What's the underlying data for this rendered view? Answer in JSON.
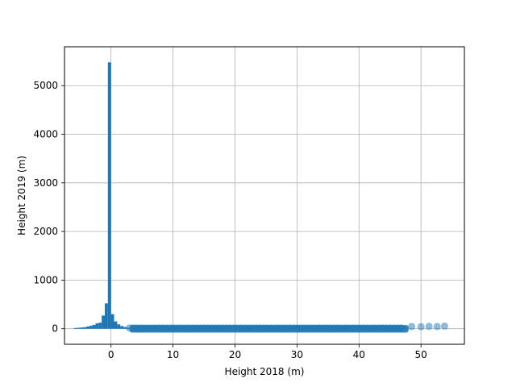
{
  "chart_data": {
    "type": "bar",
    "xlabel": "Height 2018 (m)",
    "ylabel": "Height 2019 (m)",
    "xlim": [
      -7.5,
      57
    ],
    "ylim": [
      -320,
      5800
    ],
    "xticks": [
      0,
      10,
      20,
      30,
      40,
      50
    ],
    "yticks": [
      0,
      1000,
      2000,
      3000,
      4000,
      5000
    ],
    "grid": true,
    "colors": {
      "bars": "#1f77b4",
      "scatter": "#1f77b4",
      "grid": "#b0b0b0"
    },
    "histogram": {
      "bin_width": 0.5,
      "bins": [
        {
          "x": -5.75,
          "value": 15
        },
        {
          "x": -5.25,
          "value": 20
        },
        {
          "x": -4.75,
          "value": 25
        },
        {
          "x": -4.25,
          "value": 30
        },
        {
          "x": -3.75,
          "value": 45
        },
        {
          "x": -3.25,
          "value": 60
        },
        {
          "x": -2.75,
          "value": 80
        },
        {
          "x": -2.25,
          "value": 110
        },
        {
          "x": -1.75,
          "value": 125
        },
        {
          "x": -1.25,
          "value": 270
        },
        {
          "x": -0.75,
          "value": 520
        },
        {
          "x": -0.25,
          "value": 5480
        },
        {
          "x": 0.25,
          "value": 300
        },
        {
          "x": 0.75,
          "value": 150
        },
        {
          "x": 1.25,
          "value": 90
        },
        {
          "x": 1.75,
          "value": 55
        },
        {
          "x": 2.25,
          "value": 35
        },
        {
          "x": 2.75,
          "value": 20
        }
      ]
    },
    "scatter": {
      "x_range": [
        3,
        54
      ],
      "band_y_min": -80,
      "band_y_max": 75,
      "outliers": [
        {
          "x": 48.5,
          "y": 45
        },
        {
          "x": 50.0,
          "y": 40
        },
        {
          "x": 51.3,
          "y": 50
        },
        {
          "x": 52.6,
          "y": 45
        },
        {
          "x": 53.8,
          "y": 55
        }
      ]
    }
  }
}
